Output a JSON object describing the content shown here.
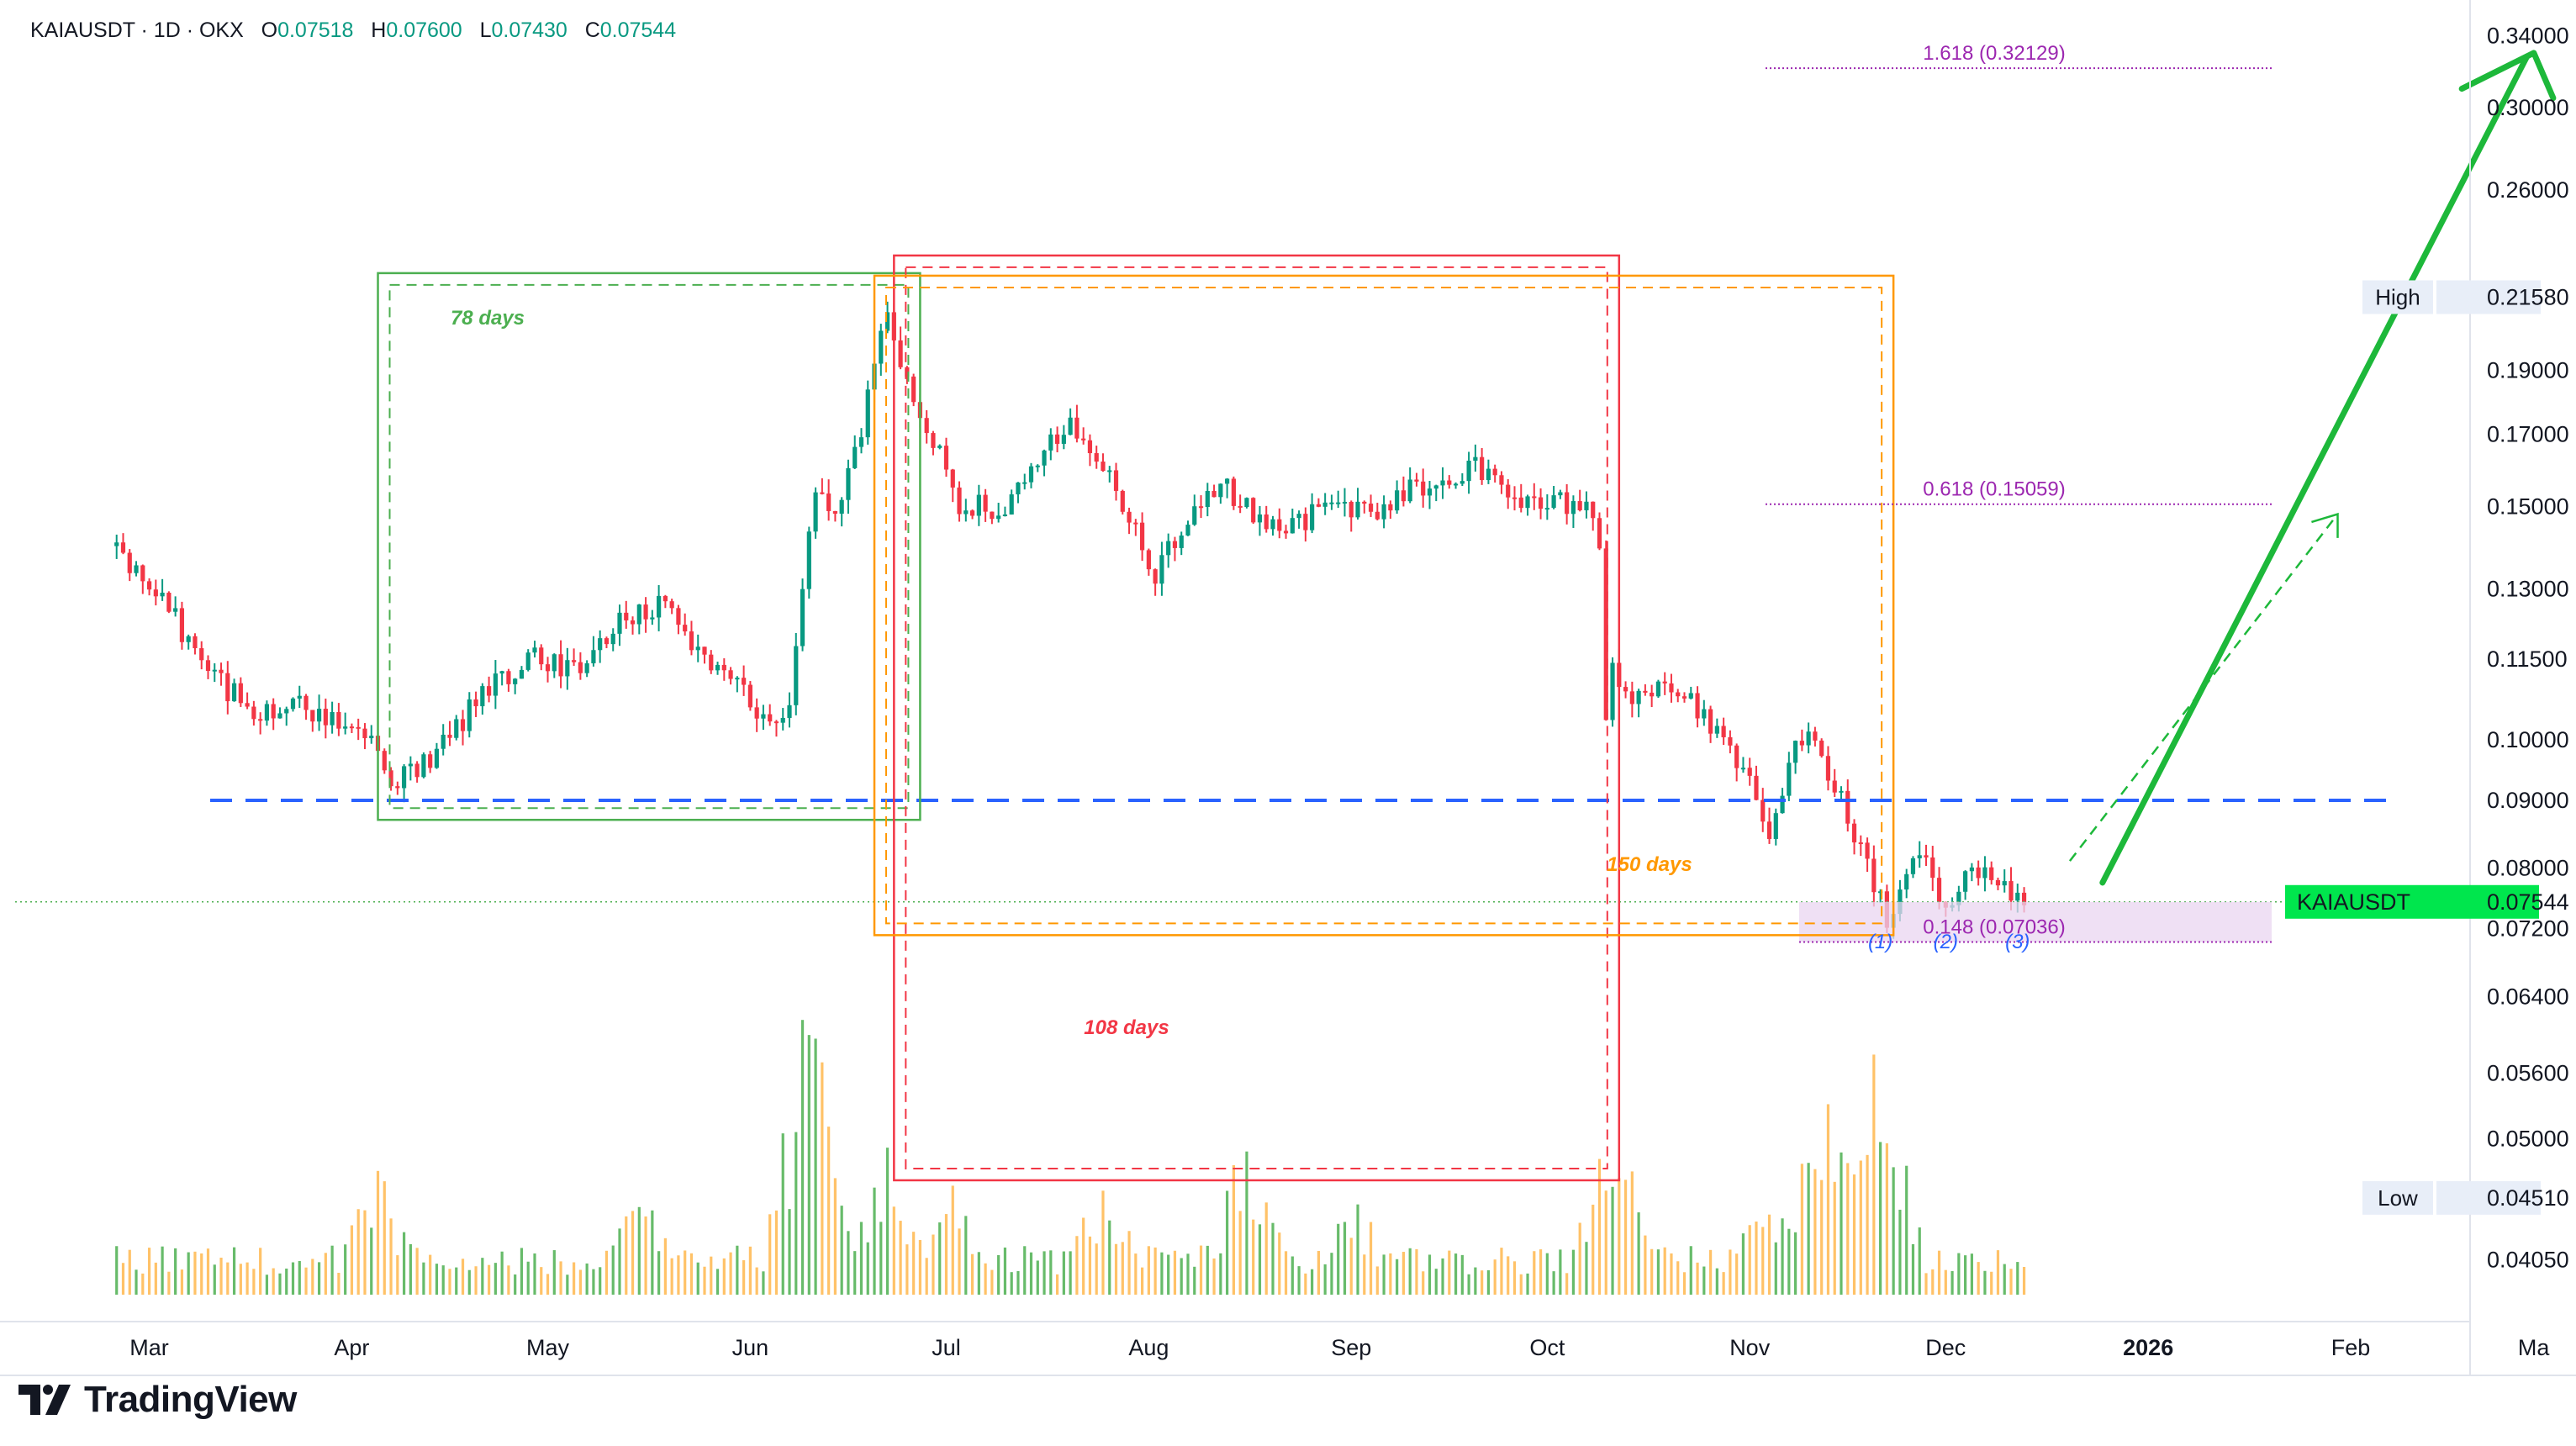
{
  "header": {
    "symbol": "KAIAUSDT · 1D · OKX",
    "open_label": "O",
    "open": "0.07518",
    "high_label": "H",
    "high": "0.07600",
    "low_label": "L",
    "low": "0.07430",
    "close_label": "C",
    "close": "0.07544"
  },
  "brand": {
    "name": "TradingView",
    "logo_icon": "tradingview-logo-icon"
  },
  "colors": {
    "up": "#089981",
    "down": "#F23645",
    "vol_up": "#4CAF50",
    "vol_down": "#FFB74D",
    "green_box": "#4CAF50",
    "red_box": "#F23645",
    "orange_box": "#FF9800",
    "fib": "#9C27B0",
    "support": "#2962FF",
    "arrow": "#1DB83A",
    "price_tag": "#00E64D"
  },
  "chart_data": {
    "type": "candlestick",
    "symbol": "KAIAUSDT",
    "timeframe": "1D",
    "exchange": "OKX",
    "y_scale": "log",
    "y_ticks": [
      "0.34000",
      "0.30000",
      "0.26000",
      "0.19000",
      "0.17000",
      "0.15000",
      "0.13000",
      "0.11500",
      "0.10000",
      "0.09000",
      "0.08000",
      "0.07200",
      "0.06400",
      "0.05600",
      "0.05000",
      "0.04050"
    ],
    "x_ticks": [
      "Mar",
      "Apr",
      "May",
      "Jun",
      "Jul",
      "Aug",
      "Sep",
      "Oct",
      "Nov",
      "Dec",
      "2026",
      "Feb",
      "Ma"
    ],
    "last_price": {
      "label": "KAIAUSDT",
      "value": "0.07544"
    },
    "high_marker": {
      "label": "High",
      "value": "0.21580"
    },
    "low_marker": {
      "label": "Low",
      "value": "0.04510"
    },
    "fib_levels": [
      {
        "label": "1.618 (0.32129)",
        "value": 0.32129
      },
      {
        "label": "0.618 (0.15059)",
        "value": 0.15059
      },
      {
        "label": "0.148 (0.07036)",
        "value": 0.07036
      }
    ],
    "support_level": 0.09,
    "annotations": {
      "green_days": "78 days",
      "red_days": "108 days",
      "orange_days": "150 days",
      "wave_labels": [
        "(1)",
        "(2)",
        "(3)"
      ]
    },
    "anchors": [
      [
        "2025-02-24",
        0.14
      ],
      [
        "2025-03-03",
        0.128
      ],
      [
        "2025-03-10",
        0.112
      ],
      [
        "2025-03-17",
        0.105
      ],
      [
        "2025-03-24",
        0.106
      ],
      [
        "2025-03-31",
        0.104
      ],
      [
        "2025-04-04",
        0.1
      ],
      [
        "2025-04-07",
        0.093
      ],
      [
        "2025-04-14",
        0.098
      ],
      [
        "2025-04-21",
        0.108
      ],
      [
        "2025-04-28",
        0.116
      ],
      [
        "2025-05-05",
        0.113
      ],
      [
        "2025-05-12",
        0.122
      ],
      [
        "2025-05-19",
        0.128
      ],
      [
        "2025-05-24",
        0.115
      ],
      [
        "2025-05-31",
        0.108
      ],
      [
        "2025-06-04",
        0.102
      ],
      [
        "2025-06-07",
        0.105
      ],
      [
        "2025-06-09",
        0.13
      ],
      [
        "2025-06-11",
        0.155
      ],
      [
        "2025-06-14",
        0.15
      ],
      [
        "2025-06-17",
        0.163
      ],
      [
        "2025-06-20",
        0.19
      ],
      [
        "2025-06-22",
        0.212
      ],
      [
        "2025-06-25",
        0.185
      ],
      [
        "2025-06-29",
        0.168
      ],
      [
        "2025-07-03",
        0.15
      ],
      [
        "2025-07-10",
        0.15
      ],
      [
        "2025-07-17",
        0.168
      ],
      [
        "2025-07-20",
        0.172
      ],
      [
        "2025-07-25",
        0.16
      ],
      [
        "2025-07-30",
        0.145
      ],
      [
        "2025-08-02",
        0.133
      ],
      [
        "2025-08-07",
        0.147
      ],
      [
        "2025-08-12",
        0.157
      ],
      [
        "2025-08-16",
        0.15
      ],
      [
        "2025-08-22",
        0.143
      ],
      [
        "2025-08-28",
        0.15
      ],
      [
        "2025-09-04",
        0.148
      ],
      [
        "2025-09-12",
        0.156
      ],
      [
        "2025-09-20",
        0.16
      ],
      [
        "2025-09-27",
        0.152
      ],
      [
        "2025-10-03",
        0.152
      ],
      [
        "2025-10-07",
        0.148
      ],
      [
        "2025-10-09",
        0.14
      ],
      [
        "2025-10-10",
        0.105
      ],
      [
        "2025-10-11",
        0.112
      ],
      [
        "2025-10-14",
        0.106
      ],
      [
        "2025-10-19",
        0.11
      ],
      [
        "2025-10-24",
        0.106
      ],
      [
        "2025-10-28",
        0.1
      ],
      [
        "2025-11-01",
        0.092
      ],
      [
        "2025-11-04",
        0.083
      ],
      [
        "2025-11-07",
        0.097
      ],
      [
        "2025-11-10",
        0.101
      ],
      [
        "2025-11-14",
        0.092
      ],
      [
        "2025-11-18",
        0.083
      ],
      [
        "2025-11-21",
        0.076
      ],
      [
        "2025-11-22",
        0.073
      ],
      [
        "2025-11-25",
        0.08
      ],
      [
        "2025-11-28",
        0.081
      ],
      [
        "2025-12-01",
        0.075
      ],
      [
        "2025-12-04",
        0.079
      ],
      [
        "2025-12-08",
        0.079
      ],
      [
        "2025-12-11",
        0.076
      ],
      [
        "2025-12-13",
        0.075
      ]
    ],
    "volume_spikes": [
      [
        "2025-04-05",
        0.45
      ],
      [
        "2025-05-15",
        0.35
      ],
      [
        "2025-06-10",
        1.0
      ],
      [
        "2025-06-22",
        0.55
      ],
      [
        "2025-07-02",
        0.35
      ],
      [
        "2025-07-25",
        0.4
      ],
      [
        "2025-08-16",
        0.56
      ],
      [
        "2025-09-01",
        0.38
      ],
      [
        "2025-10-10",
        0.42
      ],
      [
        "2025-10-11",
        0.62
      ],
      [
        "2025-11-04",
        0.4
      ],
      [
        "2025-11-12",
        0.7
      ],
      [
        "2025-11-19",
        0.74
      ],
      [
        "2025-11-21",
        0.88
      ]
    ]
  }
}
